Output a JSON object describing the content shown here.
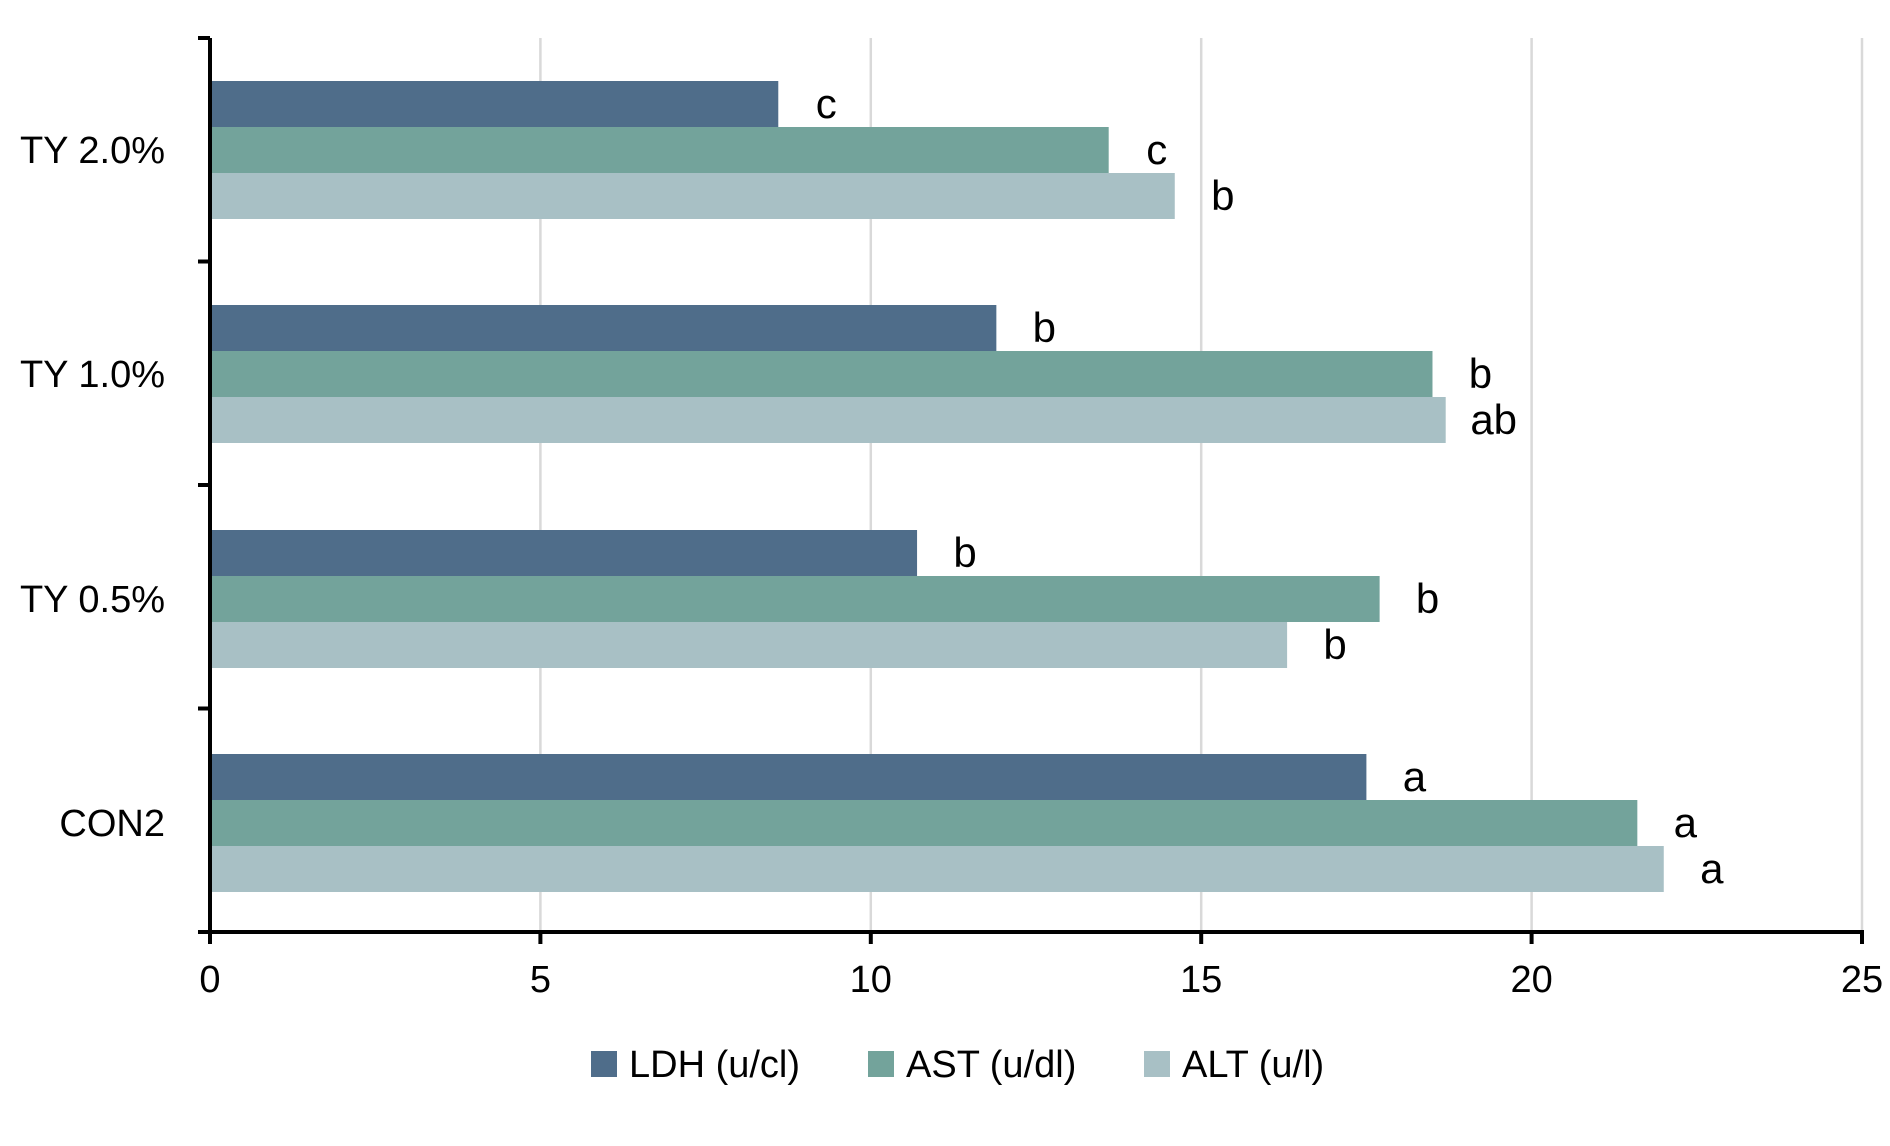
{
  "chart_data": {
    "type": "bar",
    "orientation": "horizontal",
    "categories": [
      "TY 2.0%",
      "TY 1.0%",
      "TY 0.5%",
      "CON2"
    ],
    "series": [
      {
        "name": "LDH (u/cl)",
        "color": "#4f6d8a",
        "values": [
          8.6,
          11.9,
          10.7,
          17.5
        ],
        "letters": [
          "c",
          "b",
          "b",
          "a"
        ]
      },
      {
        "name": "AST (u/dl)",
        "color": "#73a39b",
        "values": [
          13.6,
          18.5,
          17.7,
          21.6
        ],
        "letters": [
          "c",
          "b",
          "b",
          "a"
        ]
      },
      {
        "name": "ALT (u/l)",
        "color": "#a8c0c5",
        "values": [
          14.6,
          18.7,
          16.3,
          22.0
        ],
        "letters": [
          "b",
          "ab",
          "b",
          "a"
        ]
      }
    ],
    "xlim": [
      0,
      25
    ],
    "xticks": [
      0,
      5,
      10,
      15,
      20,
      25
    ],
    "grid": "vertical",
    "legend_position": "bottom",
    "title": "",
    "xlabel": "",
    "ylabel": ""
  }
}
